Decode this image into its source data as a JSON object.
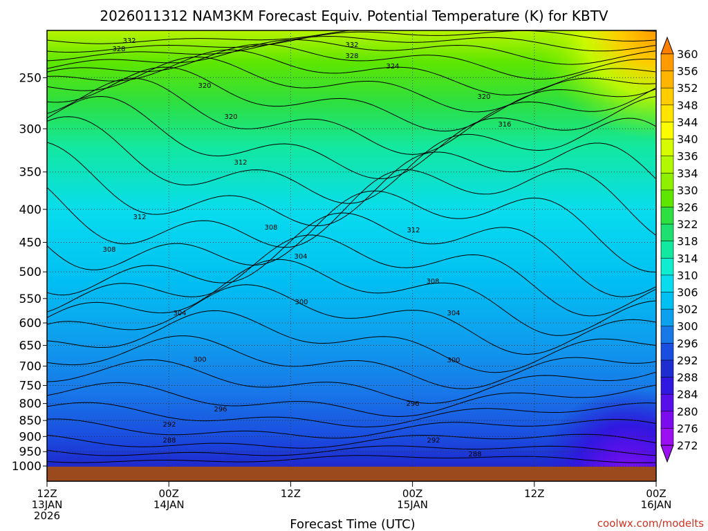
{
  "chart_data": {
    "type": "heatmap",
    "title": "2026011312 NAM3KM Forecast Equiv. Potential Temperature (K) for KBTV",
    "xlabel": "Forecast Time (UTC)",
    "ylabel": "",
    "y_scale": "log",
    "y_ticks": [
      250,
      300,
      350,
      400,
      450,
      500,
      550,
      600,
      650,
      700,
      750,
      800,
      850,
      900,
      950,
      1000
    ],
    "ylim": [
      1000,
      200
    ],
    "x_ticks": [
      {
        "l1": "12Z",
        "l2": "13JAN",
        "l3": "2026"
      },
      {
        "l1": "00Z",
        "l2": "14JAN",
        "l3": ""
      },
      {
        "l1": "12Z",
        "l2": "",
        "l3": ""
      },
      {
        "l1": "00Z",
        "l2": "15JAN",
        "l3": ""
      },
      {
        "l1": "12Z",
        "l2": "",
        "l3": ""
      },
      {
        "l1": "00Z",
        "l2": "16JAN",
        "l3": ""
      }
    ],
    "colorbar": {
      "values": [
        360,
        356,
        352,
        348,
        344,
        340,
        336,
        334,
        330,
        326,
        322,
        318,
        314,
        310,
        306,
        302,
        300,
        296,
        292,
        288,
        284,
        280,
        276,
        272
      ],
      "colors": [
        "#ff7f00",
        "#ff9a00",
        "#ffb400",
        "#ffcc00",
        "#ffe400",
        "#fbfc00",
        "#d7fc00",
        "#b2f800",
        "#8ef000",
        "#5ee600",
        "#2ddf40",
        "#1ee070",
        "#12e8a0",
        "#10ecd0",
        "#08dcee",
        "#00c0f2",
        "#0da0ee",
        "#1878e8",
        "#1a4ee0",
        "#1e2cd0",
        "#3018e0",
        "#5810ea",
        "#7a0cee",
        "#9a10f0"
      ]
    },
    "contour_labels": [
      {
        "text": "332"
      },
      {
        "text": "328"
      },
      {
        "text": "320"
      },
      {
        "text": "332"
      },
      {
        "text": "328"
      },
      {
        "text": "324"
      },
      {
        "text": "320"
      },
      {
        "text": "316"
      },
      {
        "text": "320"
      },
      {
        "text": "312"
      },
      {
        "text": "312"
      },
      {
        "text": "308"
      },
      {
        "text": "308"
      },
      {
        "text": "304"
      },
      {
        "text": "312"
      },
      {
        "text": "308"
      },
      {
        "text": "304"
      },
      {
        "text": "300"
      },
      {
        "text": "304"
      },
      {
        "text": "300"
      },
      {
        "text": "300"
      },
      {
        "text": "296"
      },
      {
        "text": "296"
      },
      {
        "text": "292"
      },
      {
        "text": "292"
      },
      {
        "text": "288"
      },
      {
        "text": "288"
      }
    ]
  },
  "watermark": "coolwx.com/modelts",
  "colors": {
    "ground": "#9b4a1e",
    "watermark": "#d03020",
    "frame": "#000000"
  }
}
